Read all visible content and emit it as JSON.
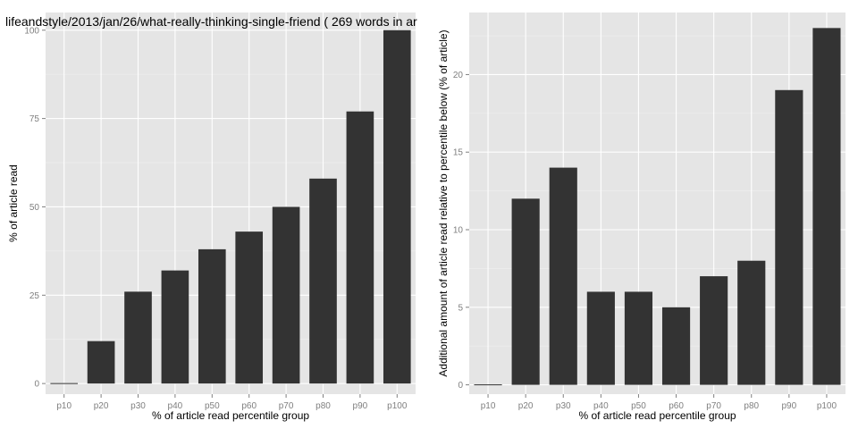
{
  "chart_data": [
    {
      "type": "bar",
      "title": "lifeandstyle/2013/jan/26/what-really-thinking-single-friend ( 269 words in ar",
      "xlabel": "% of article read percentile group",
      "ylabel": "% of article read",
      "categories": [
        "p10",
        "p20",
        "p30",
        "p40",
        "p50",
        "p60",
        "p70",
        "p80",
        "p90",
        "p100"
      ],
      "values": [
        0,
        12,
        26,
        32,
        38,
        43,
        50,
        58,
        77,
        100
      ],
      "ylim": [
        -3,
        105
      ],
      "yticks": [
        0,
        25,
        50,
        75,
        100
      ],
      "grid": true
    },
    {
      "type": "bar",
      "title": "",
      "xlabel": "% of article read percentile group",
      "ylabel": "Additional amount of article read relative to percentile below (% of article)",
      "categories": [
        "p10",
        "p20",
        "p30",
        "p40",
        "p50",
        "p60",
        "p70",
        "p80",
        "p90",
        "p100"
      ],
      "values": [
        0,
        12,
        14,
        6,
        6,
        5,
        7,
        8,
        19,
        23
      ],
      "ylim": [
        -0.6,
        24
      ],
      "yticks": [
        0,
        5,
        10,
        15,
        20
      ],
      "grid": true
    }
  ]
}
